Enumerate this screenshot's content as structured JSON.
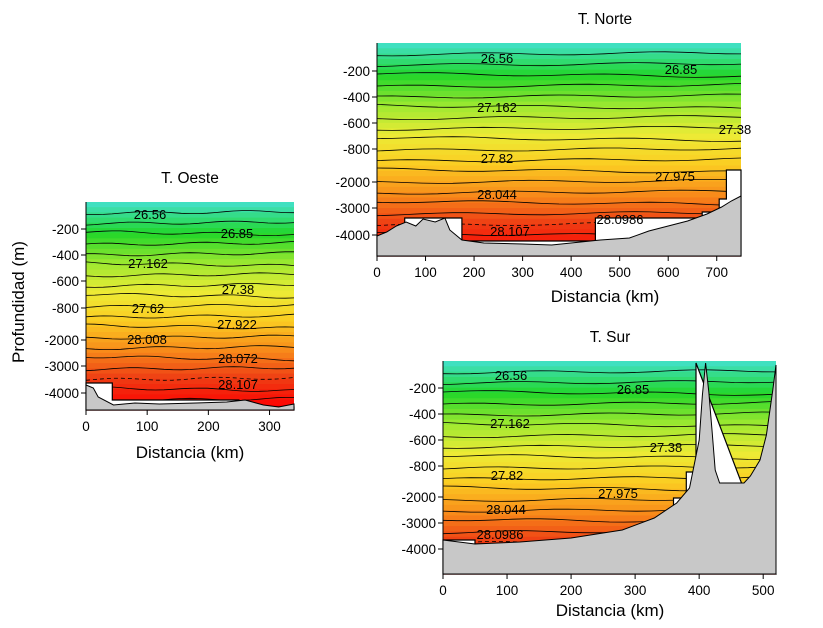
{
  "ylabel": "Profundidad (m)",
  "colors": {
    "scale": [
      "#40e0c0",
      "#22d62a",
      "#9ae830",
      "#ecec36",
      "#fbcd22",
      "#f88d1a",
      "#ee3d14",
      "#fe0000"
    ],
    "bottom": "#c8c8c8",
    "contour": "#000000"
  },
  "chart_data": [
    {
      "type": "contour-section",
      "title": "T. Oeste",
      "xlabel": "Distancia (km)",
      "xlim": [
        0,
        340
      ],
      "xticks": [
        0,
        100,
        200,
        300
      ],
      "yticks": [
        "-200",
        "-400",
        "-600",
        "-800",
        "-2000",
        "-3000",
        "-4000"
      ],
      "contour_labels": [
        "26.56",
        "26.85",
        "27.162",
        "27.38",
        "27.62",
        "27.922",
        "28.008",
        "28.072",
        "28.107"
      ]
    },
    {
      "type": "contour-section",
      "title": "T. Norte",
      "xlabel": "Distancia (km)",
      "xlim": [
        0,
        750
      ],
      "xticks": [
        0,
        100,
        200,
        300,
        400,
        500,
        600,
        700
      ],
      "yticks": [
        "-200",
        "-400",
        "-600",
        "-800",
        "-2000",
        "-3000",
        "-4000"
      ],
      "contour_labels": [
        "26.56",
        "26.85",
        "27.162",
        "27.38",
        "27.82",
        "27.975",
        "28.044",
        "28.0986",
        "28.107"
      ]
    },
    {
      "type": "contour-section",
      "title": "T. Sur",
      "xlabel": "Distancia (km)",
      "xlim": [
        0,
        520
      ],
      "xticks": [
        0,
        100,
        200,
        300,
        400,
        500
      ],
      "yticks": [
        "-200",
        "-400",
        "-600",
        "-800",
        "-2000",
        "-3000",
        "-4000"
      ],
      "contour_labels": [
        "26.56",
        "26.85",
        "27.162",
        "27.38",
        "27.82",
        "27.975",
        "28.044",
        "28.0986"
      ]
    }
  ]
}
